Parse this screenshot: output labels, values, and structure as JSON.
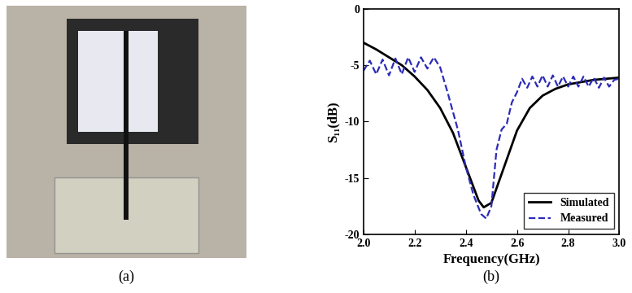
{
  "panel_labels": [
    "(a)",
    "(b)"
  ],
  "chart_data": {
    "type": "line",
    "x_label": "Frequency(GHz)",
    "y_label": "S₁₁(dB)",
    "xlim": [
      2.0,
      3.0
    ],
    "xticks": [
      2.0,
      2.2,
      2.4,
      2.6,
      2.8,
      3.0
    ],
    "ylim": [
      -20,
      0
    ],
    "yticks": [
      -20,
      -15,
      -10,
      -5,
      0
    ],
    "legend": "lower right",
    "series": [
      {
        "name": "Simulated",
        "color": "#000000",
        "line_style": "solid",
        "x": [
          2.0,
          2.05,
          2.1,
          2.15,
          2.2,
          2.25,
          2.3,
          2.35,
          2.4,
          2.45,
          2.47,
          2.5,
          2.55,
          2.6,
          2.65,
          2.7,
          2.75,
          2.8,
          2.85,
          2.9,
          2.95,
          3.0
        ],
        "values": [
          -3.0,
          -3.6,
          -4.3,
          -5.0,
          -6.0,
          -7.2,
          -8.8,
          -11.0,
          -14.0,
          -17.0,
          -17.6,
          -17.2,
          -14.0,
          -10.8,
          -8.8,
          -7.7,
          -7.1,
          -6.7,
          -6.5,
          -6.3,
          -6.2,
          -6.1
        ]
      },
      {
        "name": "Measured",
        "color": "#2b2bb8",
        "line_style": "dashed",
        "x": [
          2.0,
          2.025,
          2.05,
          2.075,
          2.1,
          2.125,
          2.15,
          2.175,
          2.2,
          2.225,
          2.25,
          2.275,
          2.3,
          2.33,
          2.37,
          2.4,
          2.43,
          2.46,
          2.48,
          2.5,
          2.52,
          2.54,
          2.56,
          2.58,
          2.6,
          2.62,
          2.64,
          2.66,
          2.68,
          2.7,
          2.72,
          2.74,
          2.76,
          2.78,
          2.8,
          2.82,
          2.84,
          2.86,
          2.88,
          2.9,
          2.92,
          2.94,
          2.96,
          2.98,
          3.0
        ],
        "values": [
          -5.5,
          -4.6,
          -5.8,
          -4.5,
          -5.9,
          -4.4,
          -5.8,
          -4.3,
          -5.6,
          -4.3,
          -5.3,
          -4.3,
          -5.2,
          -7.5,
          -10.8,
          -14.0,
          -16.5,
          -18.2,
          -18.6,
          -17.5,
          -12.5,
          -10.7,
          -10.2,
          -8.3,
          -7.4,
          -6.2,
          -7.0,
          -6.0,
          -6.9,
          -5.9,
          -6.9,
          -5.9,
          -6.9,
          -6.0,
          -6.9,
          -6.0,
          -6.9,
          -6.0,
          -6.9,
          -6.1,
          -7.0,
          -6.1,
          -6.9,
          -6.3,
          -6.2
        ]
      }
    ]
  }
}
